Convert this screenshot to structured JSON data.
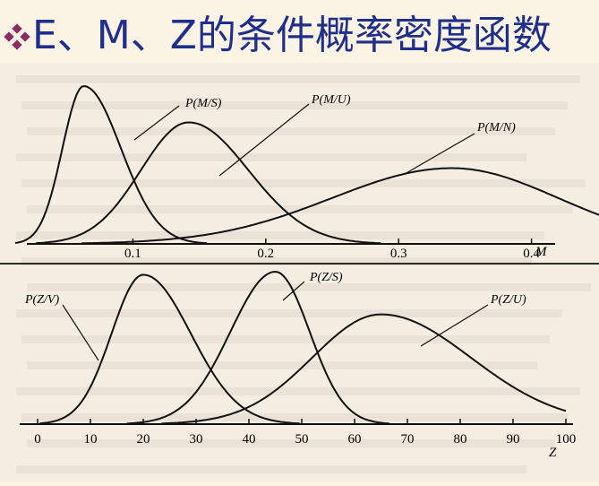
{
  "title": "E、M、Z的条件概率密度函数",
  "colors": {
    "title": "#1f2f8a",
    "bullet": "#8a2b66",
    "background": "#fbf3e3",
    "ink": "#111111"
  },
  "bullet_icon": "diamond-bullet-icon",
  "chart_data": [
    {
      "type": "line",
      "xlabel": "M",
      "xlim": [
        0,
        0.5
      ],
      "ticks": [
        {
          "value": 0.1,
          "label": "0.1"
        },
        {
          "value": 0.2,
          "label": "0.2"
        },
        {
          "value": 0.3,
          "label": "0.3"
        },
        {
          "value": 0.4,
          "label": "0.4"
        }
      ],
      "series": [
        {
          "name": "P(M/S)",
          "peak_x": 0.063,
          "peak_y": 1.0,
          "width_left": 0.016,
          "width_right": 0.028
        },
        {
          "name": "P(M/U)",
          "peak_x": 0.142,
          "peak_y": 0.77,
          "width_left": 0.036,
          "width_right": 0.045
        },
        {
          "name": "P(M/N)",
          "peak_x": 0.34,
          "peak_y": 0.48,
          "width_left": 0.09,
          "width_right": 0.08
        }
      ]
    },
    {
      "type": "line",
      "xlabel": "Z",
      "xlim": [
        0,
        100
      ],
      "ticks": [
        {
          "value": 0,
          "label": "0"
        },
        {
          "value": 10,
          "label": "10"
        },
        {
          "value": 20,
          "label": "20"
        },
        {
          "value": 30,
          "label": "30"
        },
        {
          "value": 40,
          "label": "40"
        },
        {
          "value": 50,
          "label": "50"
        },
        {
          "value": 60,
          "label": "60"
        },
        {
          "value": 70,
          "label": "70"
        },
        {
          "value": 80,
          "label": "80"
        },
        {
          "value": 90,
          "label": "90"
        },
        {
          "value": 100,
          "label": "100"
        }
      ],
      "series": [
        {
          "name": "P(Z/V)",
          "peak_x": 20,
          "peak_y": 0.98,
          "width_left": 6,
          "width_right": 9
        },
        {
          "name": "P(Z/S)",
          "peak_x": 45,
          "peak_y": 1.0,
          "width_left": 8.5,
          "width_right": 6.5
        },
        {
          "name": "P(Z/U)",
          "peak_x": 65,
          "peak_y": 0.72,
          "width_left": 13,
          "width_right": 17
        }
      ]
    }
  ]
}
